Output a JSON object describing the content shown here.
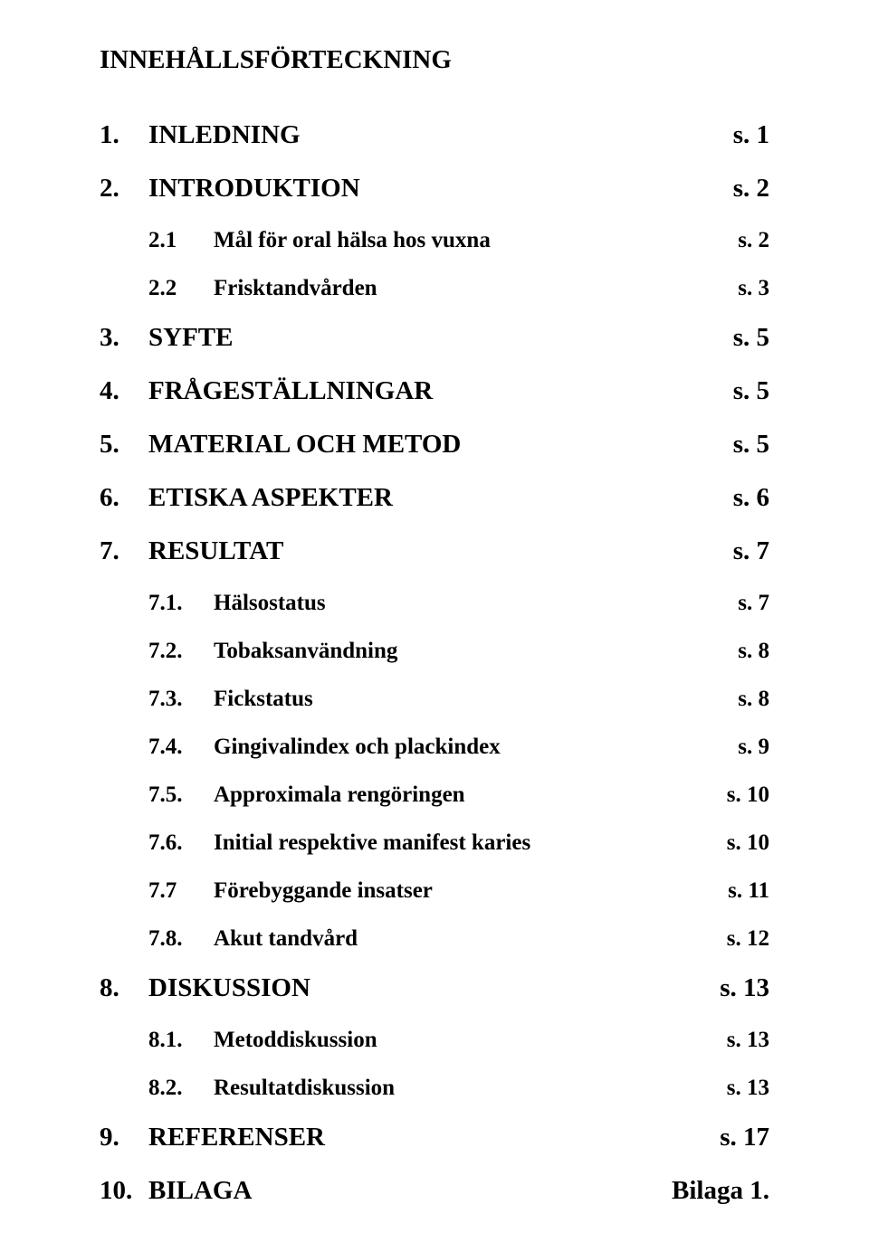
{
  "title": "INNEHÅLLSFÖRTECKNING",
  "e1": {
    "num": "1.",
    "label": "INLEDNING",
    "page": "s. 1"
  },
  "e2": {
    "num": "2.",
    "label": "INTRODUKTION",
    "page": "s. 2"
  },
  "e3": {
    "num": "2.1",
    "label": "Mål för oral hälsa hos vuxna",
    "page": "s. 2"
  },
  "e4": {
    "num": "2.2",
    "label": "Frisktandvården",
    "page": "s. 3"
  },
  "e5": {
    "num": "3.",
    "label": "SYFTE",
    "page": "s. 5"
  },
  "e6": {
    "num": "4.",
    "label": "FRÅGESTÄLLNINGAR",
    "page": "s. 5"
  },
  "e7": {
    "num": "5.",
    "label": "MATERIAL OCH METOD",
    "page": "s. 5"
  },
  "e8": {
    "num": "6.",
    "label": "ETISKA ASPEKTER",
    "page": "s. 6"
  },
  "e9": {
    "num": "7.",
    "label": "RESULTAT",
    "page": "s. 7"
  },
  "e10": {
    "num": "7.1.",
    "label": "Hälsostatus",
    "page": "s. 7"
  },
  "e11": {
    "num": "7.2.",
    "label": "Tobaksanvändning",
    "page": "s. 8"
  },
  "e12": {
    "num": "7.3.",
    "label": "Fickstatus",
    "page": "s. 8"
  },
  "e13": {
    "num": "7.4.",
    "label": "Gingivalindex och plackindex",
    "page": "s. 9"
  },
  "e14": {
    "num": "7.5.",
    "label": "Approximala rengöringen",
    "page": "s. 10"
  },
  "e15": {
    "num": "7.6.",
    "label": "Initial respektive manifest karies",
    "page": "s. 10"
  },
  "e16": {
    "num": "7.7",
    "label": "Förebyggande insatser",
    "page": "s. 11"
  },
  "e17": {
    "num": "7.8.",
    "label": "Akut tandvård",
    "page": "s. 12"
  },
  "e18": {
    "num": "8.",
    "label": "DISKUSSION",
    "page": "s. 13"
  },
  "e19": {
    "num": "8.1.",
    "label": "Metoddiskussion",
    "page": "s. 13"
  },
  "e20": {
    "num": "8.2.",
    "label": "Resultatdiskussion",
    "page": "s. 13"
  },
  "e21": {
    "num": "9.",
    "label": "REFERENSER",
    "page": "s. 17"
  },
  "e22": {
    "num": "10.",
    "label": "BILAGA",
    "page": "Bilaga 1."
  }
}
